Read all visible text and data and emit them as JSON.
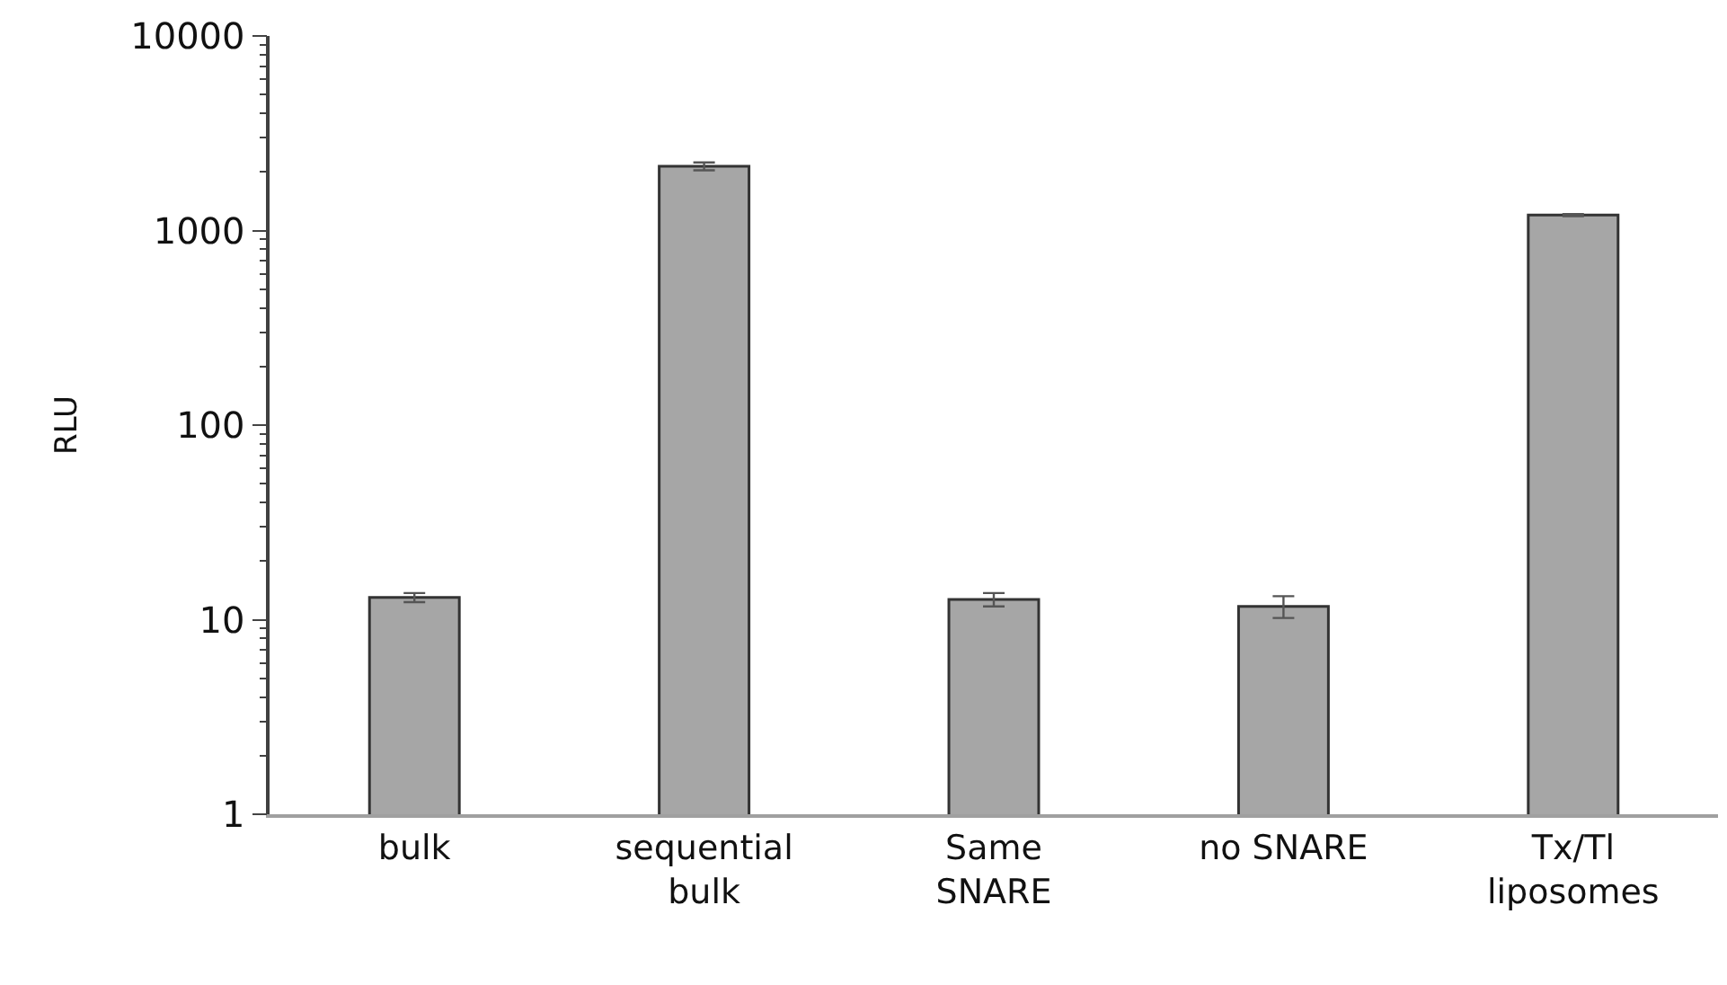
{
  "chart_data": {
    "type": "bar",
    "ylabel": "RLU",
    "categories": [
      "bulk",
      "sequential\nbulk",
      "Same\nSNARE",
      "no SNARE",
      "Tx/Tl\nliposomes"
    ],
    "values": [
      13,
      2140,
      12.7,
      11.7,
      1200
    ],
    "errors": [
      0.7,
      100,
      1,
      1.5,
      15
    ],
    "color": "#a6a6a6",
    "log": true,
    "ylim": [
      1,
      10000
    ],
    "yticks": [
      1,
      10,
      100,
      1000,
      10000
    ]
  }
}
